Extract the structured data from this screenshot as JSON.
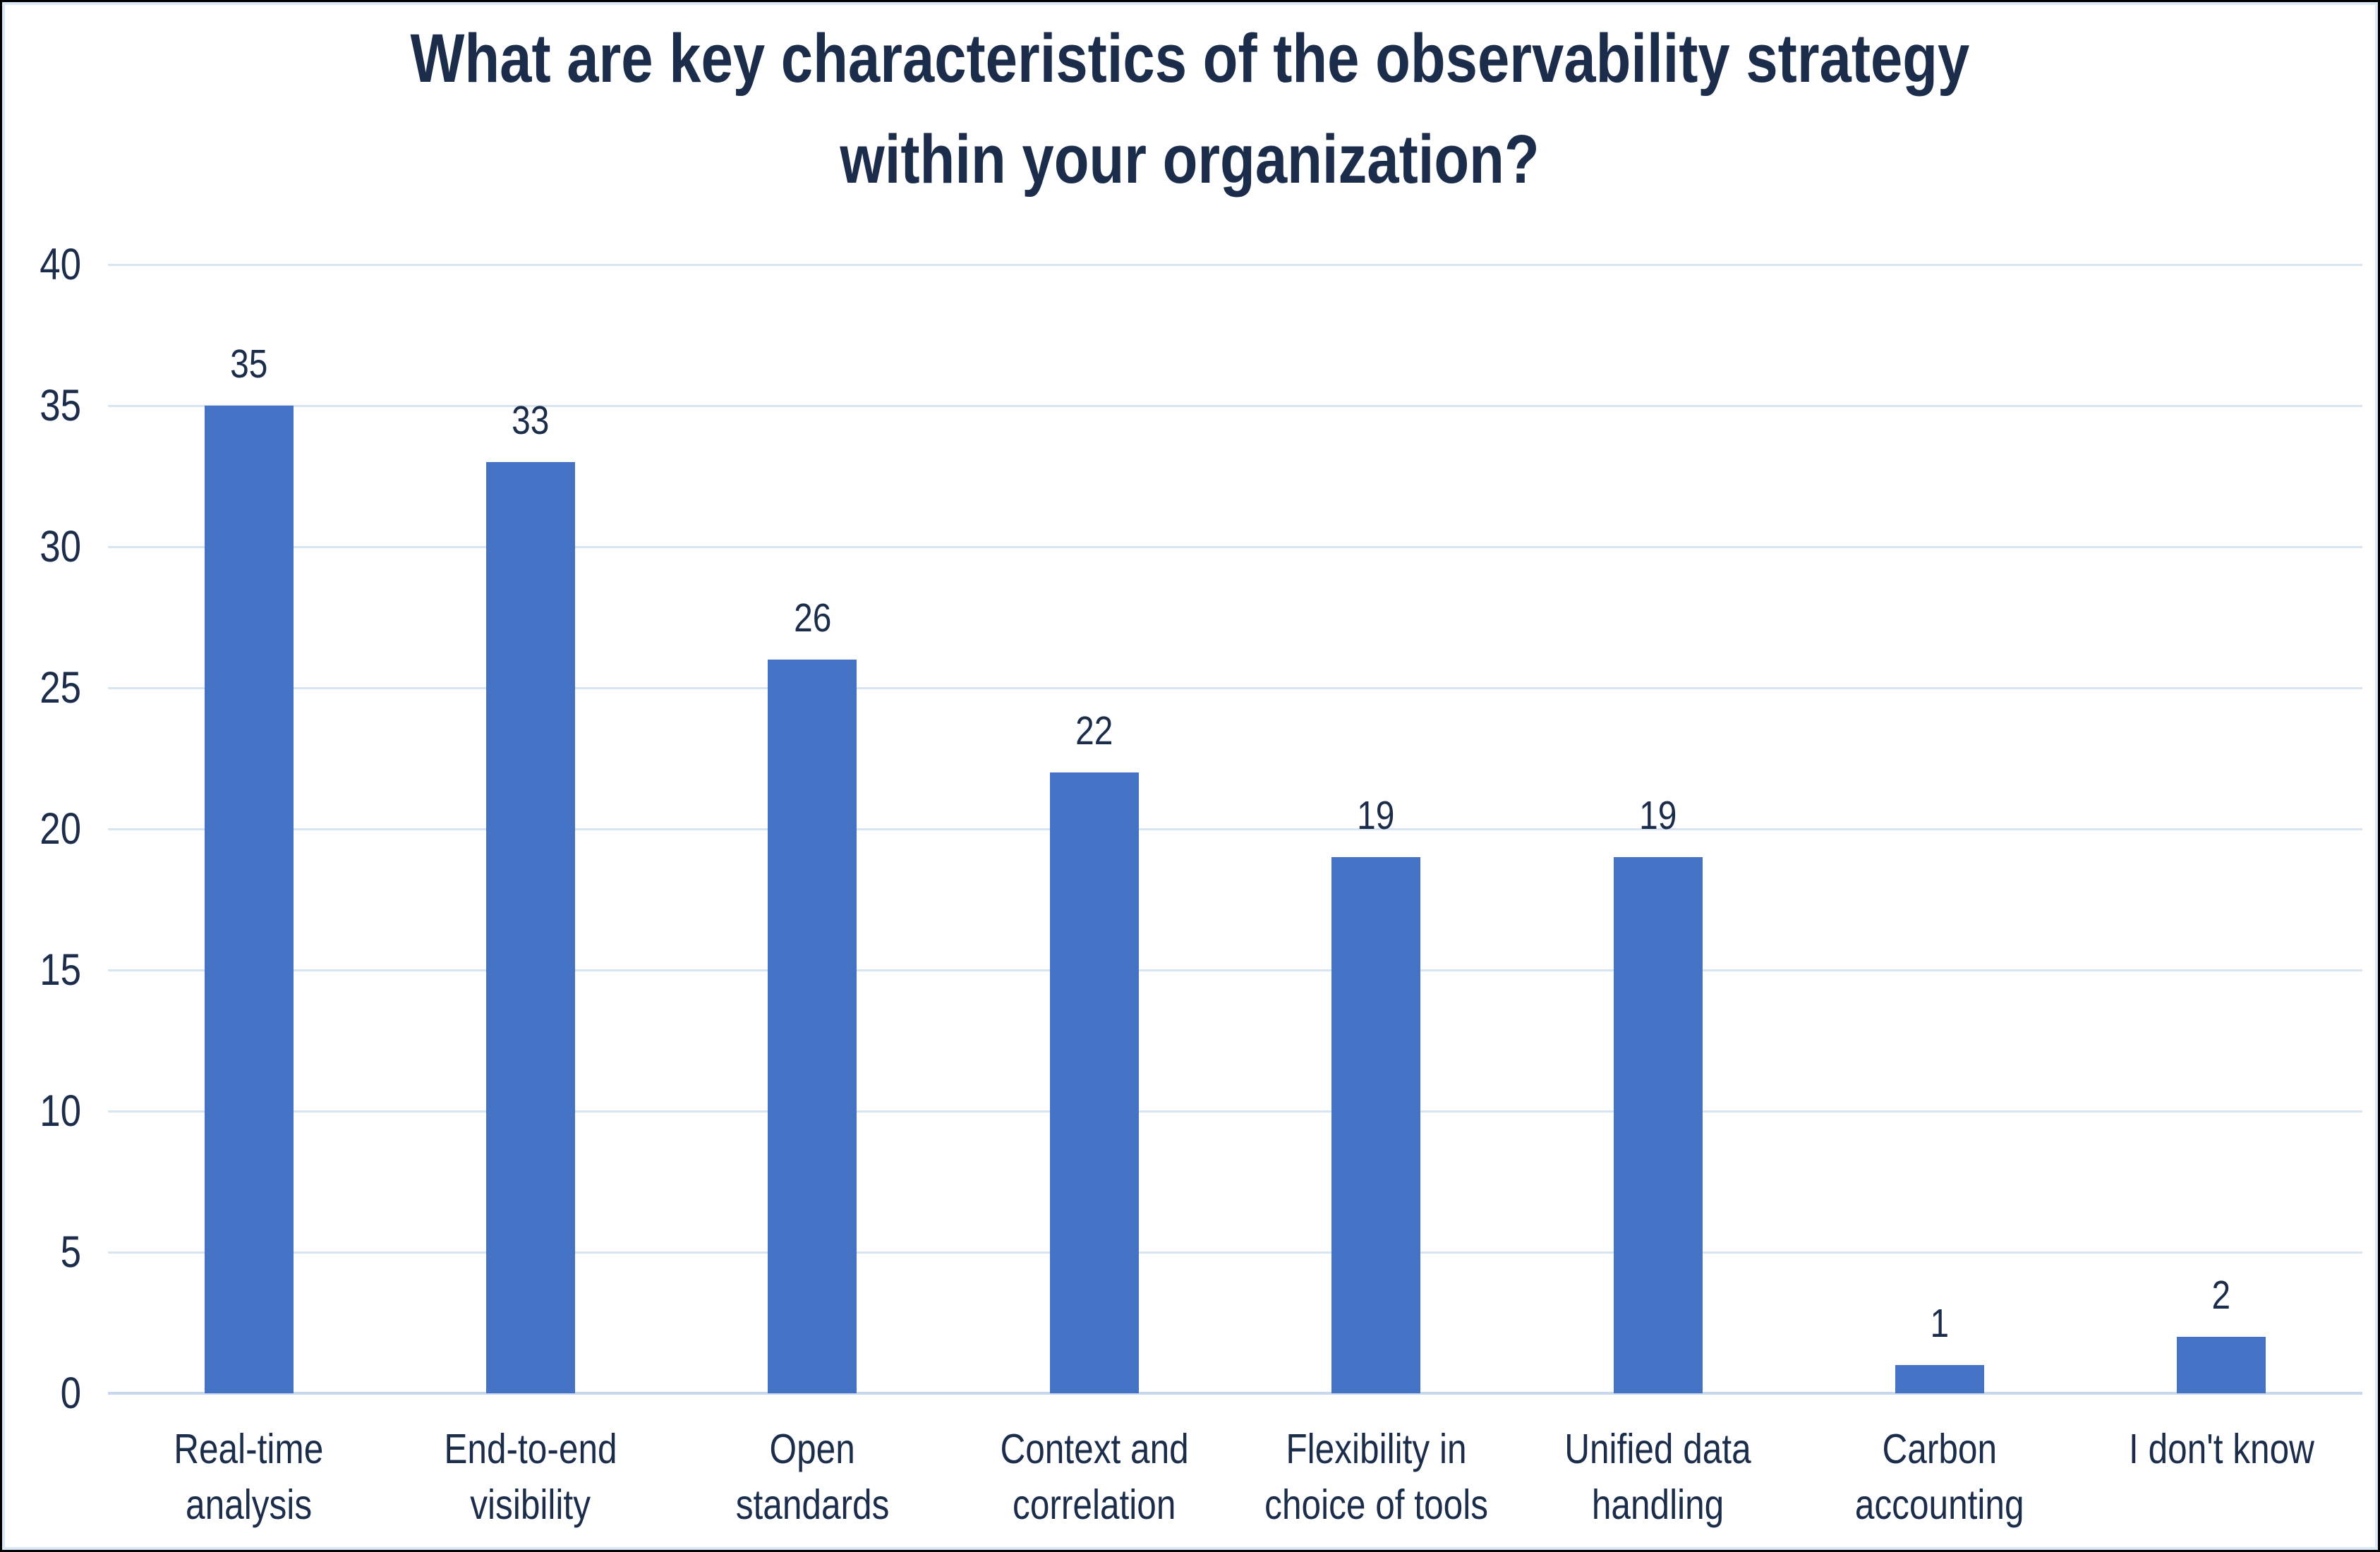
{
  "title": {
    "line1": "What are key characteristics of the observability strategy",
    "line2": "within your organization?"
  },
  "chart_data": {
    "type": "bar",
    "title": "What are key characteristics of the observability strategy within your organization?",
    "title_lines": [
      "What are key characteristics of the observability strategy",
      "within your organization?"
    ],
    "categories": [
      "Real-time analysis",
      "End-to-end visibility",
      "Open standards",
      "Context and correlation",
      "Flexibility in choice of tools",
      "Unified data handling",
      "Carbon accounting",
      "I don't know"
    ],
    "category_label_lines": [
      [
        "Real-time",
        "analysis"
      ],
      [
        "End-to-end",
        "visibility"
      ],
      [
        "Open",
        "standards"
      ],
      [
        "Context and",
        "correlation"
      ],
      [
        "Flexibility in",
        "choice of tools"
      ],
      [
        "Unified data",
        "handling"
      ],
      [
        "Carbon",
        "accounting"
      ],
      [
        "I don't know"
      ]
    ],
    "values": [
      35,
      33,
      26,
      22,
      19,
      19,
      1,
      2
    ],
    "data_labels": [
      "35",
      "33",
      "26",
      "22",
      "19",
      "19",
      "1",
      "2"
    ],
    "xlabel": "",
    "ylabel": "",
    "ylim": [
      0,
      40
    ],
    "yticks": [
      0,
      5,
      10,
      15,
      20,
      25,
      30,
      35,
      40
    ],
    "grid": true,
    "legend": false
  },
  "colors": {
    "bar": "#4472C4",
    "gridline": "#D9E4F3",
    "axis_line": "#C7D8EE",
    "text": "#1B2D4A",
    "inner_border": "#DBE8F6",
    "outer_border": "#000000",
    "background": "#FFFFFF"
  }
}
